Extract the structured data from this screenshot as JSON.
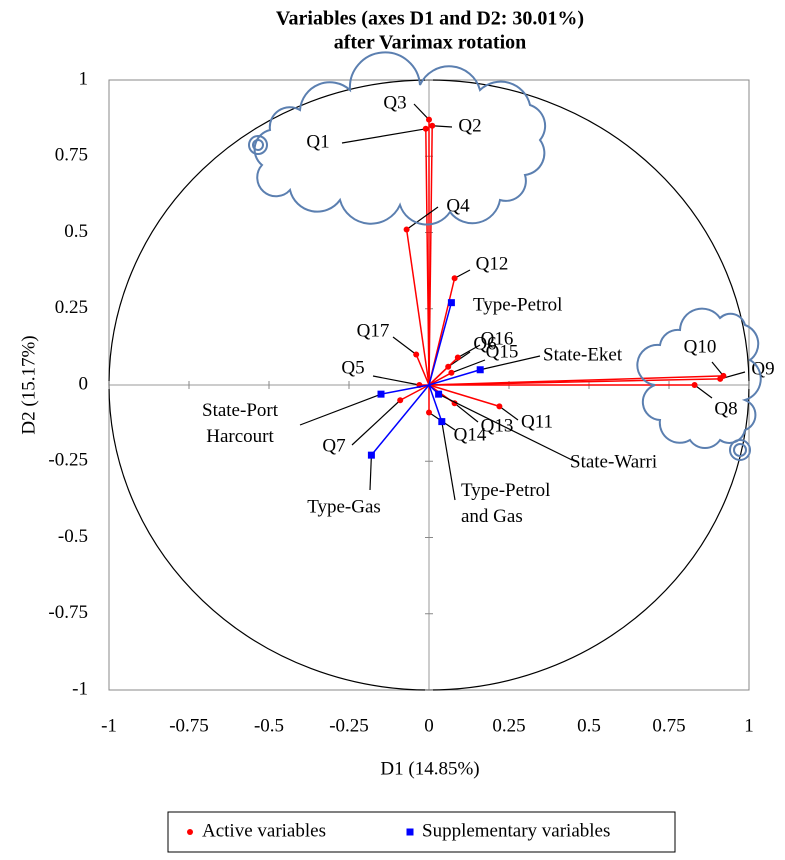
{
  "chart_data": {
    "type": "scatter",
    "title": "Variables (axes D1 and D2: 30.01%)",
    "subtitle": "after Varimax rotation",
    "xlabel": "D1 (14.85%)",
    "ylabel": "D2 (15.17%)",
    "xlim": [
      -1,
      1
    ],
    "ylim": [
      -1,
      1
    ],
    "xticks": [
      -1,
      -0.75,
      -0.5,
      -0.25,
      0,
      0.25,
      0.5,
      0.75,
      1
    ],
    "yticks": [
      -1,
      -0.75,
      -0.5,
      -0.25,
      0,
      0.25,
      0.5,
      0.75,
      1
    ],
    "legend": "bottom",
    "series": [
      {
        "name": "Active variables",
        "color": "#ff0000",
        "marker": "circle",
        "labels": [
          "Q1",
          "Q2",
          "Q3",
          "Q4",
          "Q5",
          "Q6",
          "Q7",
          "Q8",
          "Q9",
          "Q10",
          "Q11",
          "Q12",
          "Q13",
          "Q14",
          "Q15",
          "Q16",
          "Q17"
        ],
        "x": [
          -0.01,
          0.01,
          0.0,
          -0.07,
          -0.03,
          0.06,
          -0.09,
          0.83,
          0.91,
          0.92,
          0.22,
          0.08,
          0.08,
          0.0,
          0.07,
          0.09,
          -0.04
        ],
        "values": [
          0.84,
          0.85,
          0.87,
          0.51,
          0.0,
          0.06,
          -0.05,
          0.0,
          0.02,
          0.03,
          -0.07,
          0.35,
          -0.06,
          -0.09,
          0.04,
          0.09,
          0.1
        ]
      },
      {
        "name": "Supplementary variables",
        "color": "#0000ff",
        "marker": "square",
        "labels": [
          "Type-Petrol",
          "State-Eket",
          "State-Port\nHarcourt",
          "Type-Gas",
          "Type-Petrol\nand Gas",
          "State-Warri"
        ],
        "x": [
          0.07,
          0.16,
          -0.15,
          -0.18,
          0.04,
          0.03
        ],
        "values": [
          0.27,
          0.05,
          -0.03,
          -0.23,
          -0.12,
          -0.03
        ]
      }
    ]
  }
}
